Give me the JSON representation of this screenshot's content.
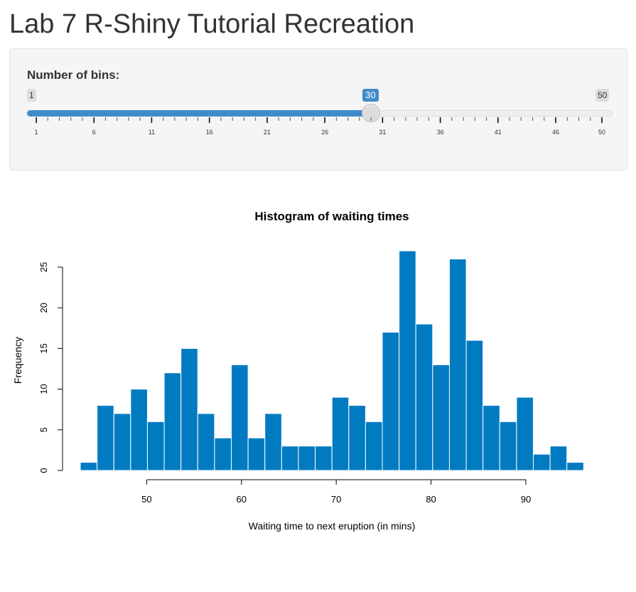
{
  "page": {
    "title": "Lab 7 R-Shiny Tutorial Recreation"
  },
  "slider": {
    "label": "Number of bins:",
    "min": 1,
    "max": 50,
    "value": 30,
    "min_label": "1",
    "max_label": "50",
    "value_label": "30",
    "tick_labels": [
      "1",
      "6",
      "11",
      "16",
      "21",
      "26",
      "31",
      "36",
      "41",
      "46",
      "50"
    ],
    "accent_color": "#428bca"
  },
  "chart_data": {
    "type": "bar",
    "title": "Histogram of waiting times",
    "xlabel": "Waiting time to next eruption (in mins)",
    "ylabel": "Frequency",
    "bin_start": 43.0,
    "bin_width": 1.77,
    "values": [
      1,
      8,
      7,
      10,
      6,
      12,
      15,
      7,
      4,
      13,
      4,
      7,
      3,
      3,
      3,
      9,
      8,
      6,
      17,
      27,
      18,
      13,
      26,
      16,
      8,
      6,
      9,
      2,
      3,
      1
    ],
    "xticks": [
      50,
      60,
      70,
      80,
      90
    ],
    "yticks": [
      0,
      5,
      10,
      15,
      20,
      25
    ],
    "xlim": [
      43,
      96
    ],
    "ylim": [
      0,
      27
    ],
    "bar_color": "#007bc2",
    "bar_border": "#ffffff"
  }
}
